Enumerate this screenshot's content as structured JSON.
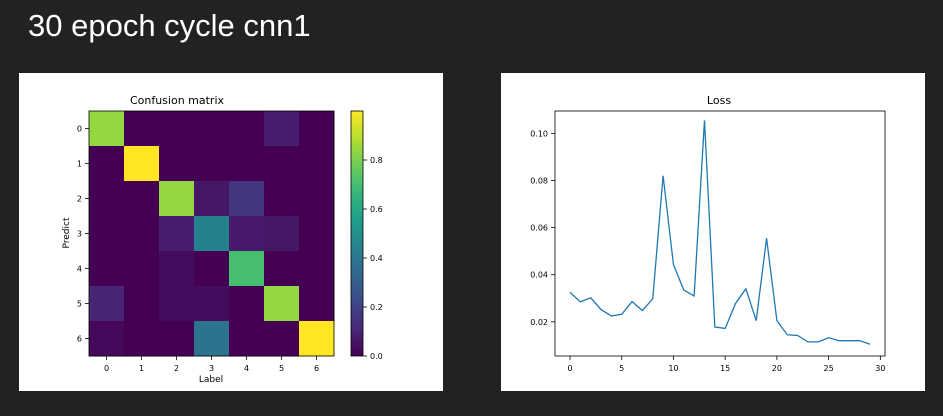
{
  "slide": {
    "title": "30 epoch cycle cnn1"
  },
  "chart_data": [
    {
      "type": "heatmap",
      "title": "Confusion matrix",
      "xlabel": "Label",
      "ylabel": "Predict",
      "x_ticks": [
        "0",
        "1",
        "2",
        "3",
        "4",
        "5",
        "6"
      ],
      "y_ticks": [
        "0",
        "1",
        "2",
        "3",
        "4",
        "5",
        "6"
      ],
      "colormap": "viridis",
      "colorbar_range": [
        0,
        1
      ],
      "colorbar_ticks": [
        0.0,
        0.2,
        0.4,
        0.6,
        0.8
      ],
      "colorbar_tick_labels": [
        "0.0",
        "0.2",
        "0.4",
        "0.6",
        "0.8"
      ],
      "matrix": [
        [
          0.84,
          0.0,
          0.0,
          0.0,
          0.0,
          0.08,
          0.0
        ],
        [
          0.0,
          1.0,
          0.0,
          0.0,
          0.0,
          0.0,
          0.0
        ],
        [
          0.0,
          0.0,
          0.84,
          0.06,
          0.16,
          0.0,
          0.0
        ],
        [
          0.0,
          0.0,
          0.08,
          0.44,
          0.07,
          0.06,
          0.0
        ],
        [
          0.0,
          0.0,
          0.03,
          0.0,
          0.7,
          0.0,
          0.0
        ],
        [
          0.1,
          0.0,
          0.03,
          0.03,
          0.0,
          0.84,
          0.0
        ],
        [
          0.02,
          0.0,
          0.0,
          0.38,
          0.0,
          0.0,
          1.0
        ]
      ]
    },
    {
      "type": "line",
      "title": "Loss",
      "xlabel": "",
      "ylabel": "",
      "xlim": [
        -1.45,
        30.45
      ],
      "ylim": [
        0.0055,
        0.1095
      ],
      "x_ticks": [
        0,
        5,
        10,
        15,
        20,
        25,
        30
      ],
      "y_ticks": [
        0.02,
        0.04,
        0.06,
        0.08,
        0.1
      ],
      "y_tick_labels": [
        "0.02",
        "0.04",
        "0.06",
        "0.08",
        "0.10"
      ],
      "grid": false,
      "series": [
        {
          "color": "#1f77b4",
          "x": [
            0,
            1,
            2,
            3,
            4,
            5,
            6,
            7,
            8,
            9,
            10,
            11,
            12,
            13,
            14,
            15,
            16,
            17,
            18,
            19,
            20,
            21,
            22,
            23,
            24,
            25,
            26,
            27,
            28,
            29
          ],
          "values": [
            0.0325,
            0.0285,
            0.0302,
            0.0252,
            0.0225,
            0.0232,
            0.0286,
            0.0248,
            0.0298,
            0.082,
            0.0443,
            0.0335,
            0.031,
            0.1055,
            0.0178,
            0.0172,
            0.0278,
            0.034,
            0.0205,
            0.0555,
            0.0205,
            0.0145,
            0.0142,
            0.0115,
            0.0115,
            0.0133,
            0.012,
            0.012,
            0.012,
            0.0105
          ]
        }
      ]
    }
  ]
}
